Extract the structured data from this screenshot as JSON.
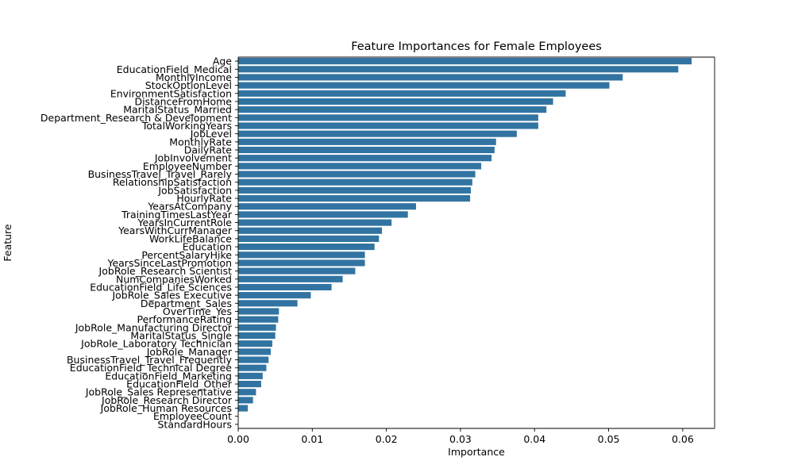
{
  "chart_data": {
    "type": "bar",
    "orientation": "horizontal",
    "title": "Feature Importances for Female Employees",
    "xlabel": "Importance",
    "ylabel": "Feature",
    "xlim": [
      0,
      0.0643
    ],
    "xticks": [
      "0.00",
      "0.01",
      "0.02",
      "0.03",
      "0.04",
      "0.05",
      "0.06"
    ],
    "grid": false,
    "bar_color": "#3274a1",
    "categories": [
      "Age",
      "EducationField_Medical",
      "MonthlyIncome",
      "StockOptionLevel",
      "EnvironmentSatisfaction",
      "DistanceFromHome",
      "MaritalStatus_Married",
      "Department_Research & Development",
      "TotalWorkingYears",
      "JobLevel",
      "MonthlyRate",
      "DailyRate",
      "JobInvolvement",
      "EmployeeNumber",
      "BusinessTravel_Travel_Rarely",
      "RelationshipSatisfaction",
      "JobSatisfaction",
      "HourlyRate",
      "YearsAtCompany",
      "TrainingTimesLastYear",
      "YearsInCurrentRole",
      "YearsWithCurrManager",
      "WorkLifeBalance",
      "Education",
      "PercentSalaryHike",
      "YearsSinceLastPromotion",
      "JobRole_Research Scientist",
      "NumCompaniesWorked",
      "EducationField_Life Sciences",
      "JobRole_Sales Executive",
      "Department_Sales",
      "OverTime_Yes",
      "PerformanceRating",
      "JobRole_Manufacturing Director",
      "MaritalStatus_Single",
      "JobRole_Laboratory Technician",
      "JobRole_Manager",
      "BusinessTravel_Travel_Frequently",
      "EducationField_Technical Degree",
      "EducationField_Marketing",
      "EducationField_Other",
      "JobRole_Sales Representative",
      "JobRole_Research Director",
      "JobRole_Human Resources",
      "EmployeeCount",
      "StandardHours"
    ],
    "values": [
      0.0612,
      0.0594,
      0.0519,
      0.0501,
      0.0442,
      0.0425,
      0.0416,
      0.0405,
      0.0405,
      0.0376,
      0.0348,
      0.0346,
      0.0342,
      0.0328,
      0.032,
      0.0316,
      0.0314,
      0.0313,
      0.024,
      0.0229,
      0.0207,
      0.0194,
      0.019,
      0.0184,
      0.0171,
      0.0171,
      0.0158,
      0.0141,
      0.0126,
      0.0098,
      0.008,
      0.0055,
      0.0054,
      0.0051,
      0.005,
      0.0046,
      0.0044,
      0.0041,
      0.0038,
      0.0033,
      0.0031,
      0.0024,
      0.002,
      0.0013,
      0.0,
      0.0
    ]
  }
}
